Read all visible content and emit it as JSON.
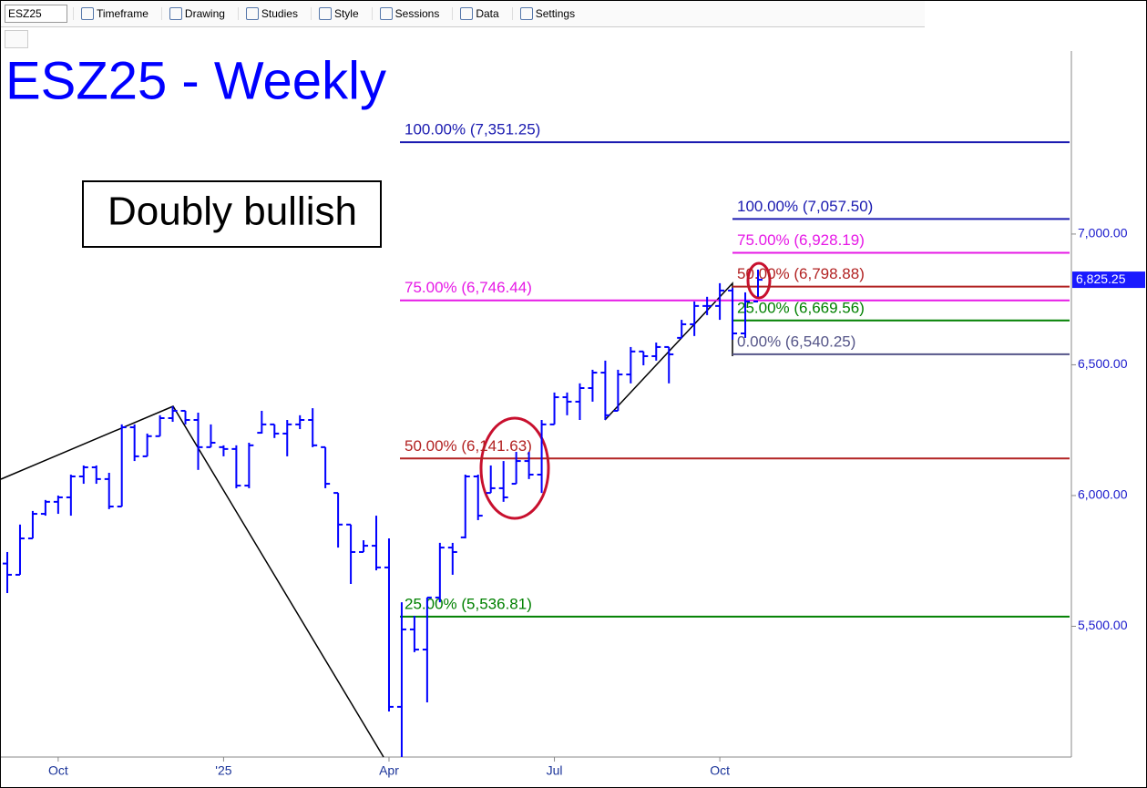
{
  "toolbar": {
    "symbol": "ESZ25",
    "items": [
      "Timeframe",
      "Drawing",
      "Studies",
      "Style",
      "Sessions",
      "Data",
      "Settings"
    ]
  },
  "chart_data": {
    "type": "ohlc",
    "title": "ESZ25 - Weekly",
    "annotation": "Doubly bullish",
    "color": "#0000ff",
    "categories": [
      null,
      null,
      null,
      null,
      "Oct",
      null,
      null,
      null,
      null,
      null,
      null,
      null,
      null,
      null,
      null,
      null,
      null,
      "'25",
      null,
      null,
      null,
      null,
      null,
      null,
      null,
      null,
      null,
      null,
      null,
      null,
      "Apr",
      null,
      null,
      null,
      null,
      null,
      null,
      null,
      null,
      null,
      null,
      null,
      null,
      "Jul",
      null,
      null,
      null,
      null,
      null,
      null,
      null,
      null,
      null,
      null,
      null,
      null,
      "Oct",
      null,
      null,
      null
    ],
    "open": [
      5740,
      5697,
      5836,
      5930,
      5976,
      5993,
      6073,
      6108,
      6063,
      5958,
      6261,
      6150,
      6227,
      6296,
      6324,
      6289,
      6185,
      6185,
      6178,
      6038,
      6240,
      6272,
      6237,
      6272,
      6289,
      6185,
      6010,
      5889,
      5784,
      5808,
      5725,
      5192,
      5488,
      5411,
      5610,
      5801,
      5840,
      6073,
      6010,
      6028,
      6045,
      6132,
      6080,
      6272,
      6376,
      6359,
      6411,
      6470,
      6324,
      6463,
      6551,
      6533,
      6568,
      6603,
      6655,
      6725,
      6725,
      6784,
      6620,
      6742
    ],
    "high": [
      5784,
      5889,
      5941,
      5983,
      6000,
      6080,
      6115,
      6115,
      6087,
      6272,
      6272,
      6237,
      6307,
      6341,
      6324,
      6317,
      6272,
      6192,
      6192,
      6202,
      6324,
      6272,
      6289,
      6307,
      6334,
      6185,
      6010,
      5889,
      5829,
      5923,
      5836,
      5592,
      5540,
      5610,
      5819,
      5819,
      6080,
      6080,
      6115,
      6132,
      6167,
      6167,
      6289,
      6394,
      6394,
      6429,
      6481,
      6516,
      6481,
      6568,
      6551,
      6585,
      6568,
      6672,
      6742,
      6760,
      6812,
      6794,
      6777,
      6864
    ],
    "low": [
      5627,
      5697,
      5836,
      5923,
      5930,
      5923,
      6045,
      6045,
      5948,
      5958,
      6132,
      6150,
      6227,
      6282,
      6272,
      6098,
      6185,
      6150,
      6028,
      6028,
      6237,
      6220,
      6150,
      6254,
      6185,
      6028,
      5801,
      5662,
      5784,
      5714,
      5174,
      5000,
      5401,
      5209,
      5592,
      5697,
      5836,
      5906,
      6010,
      5976,
      6045,
      6063,
      6010,
      6272,
      6307,
      6289,
      6359,
      6289,
      6324,
      6429,
      6498,
      6516,
      6429,
      6603,
      6610,
      6690,
      6672,
      6596,
      6603,
      6760
    ],
    "close": [
      5697,
      5836,
      5930,
      5976,
      5993,
      6073,
      6108,
      6063,
      5958,
      6261,
      6150,
      6227,
      6296,
      6324,
      6289,
      6185,
      6202,
      6178,
      6038,
      6192,
      6272,
      6237,
      6272,
      6289,
      6192,
      6045,
      5889,
      5784,
      5808,
      5725,
      5192,
      5488,
      5411,
      5610,
      5801,
      5784,
      6073,
      5923,
      6028,
      5993,
      6132,
      6080,
      6272,
      6376,
      6359,
      6411,
      6470,
      6307,
      6463,
      6551,
      6533,
      6568,
      6540,
      6655,
      6725,
      6725,
      6784,
      6620,
      6742,
      6825.25
    ],
    "ylim": [
      5000,
      7700
    ],
    "yticks": [
      {
        "value": 5500,
        "label": "5,500.00"
      },
      {
        "value": 6000,
        "label": "6,000.00"
      },
      {
        "value": 6500,
        "label": "6,500.00"
      },
      {
        "value": 7000,
        "label": "7,000.00"
      }
    ],
    "last_price": {
      "value": 6825.25,
      "label": "6,825.25"
    },
    "fib_groups": [
      [
        {
          "label": "100.00% (7,351.25)",
          "value": 7351.25,
          "color": "#1a1ab0"
        },
        {
          "label": "75.00% (6,746.44)",
          "value": 6746.44,
          "color": "#e619e6"
        },
        {
          "label": "50.00% (6,141.63)",
          "value": 6141.63,
          "color": "#b22222"
        },
        {
          "label": "25.00% (5,536.81)",
          "value": 5536.81,
          "color": "#008000"
        }
      ],
      [
        {
          "label": "100.00% (7,057.50)",
          "value": 7057.5,
          "color": "#1a1ab0"
        },
        {
          "label": "75.00% (6,928.19)",
          "value": 6928.19,
          "color": "#e619e6"
        },
        {
          "label": "50.00% (6,798.88)",
          "value": 6798.88,
          "color": "#b22222"
        },
        {
          "label": "25.00% (6,669.56)",
          "value": 6669.56,
          "color": "#008000"
        },
        {
          "label": "0.00% (6,540.25)",
          "value": 6540.25,
          "color": "#555588"
        }
      ]
    ]
  }
}
